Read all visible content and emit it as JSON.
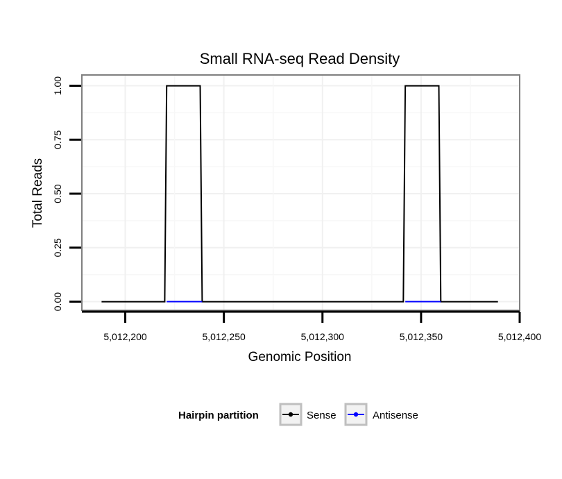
{
  "chart_data": {
    "type": "line",
    "title": "Small RNA-seq Read Density",
    "xlabel": "Genomic Position",
    "ylabel": "Total Reads",
    "xlim": [
      5012178,
      5012400
    ],
    "ylim": [
      -0.04,
      1.05
    ],
    "x_ticks": [
      5012200,
      5012250,
      5012300,
      5012350,
      5012400
    ],
    "x_tick_labels": [
      "5,012,200",
      "5,012,250",
      "5,012,300",
      "5,012,350",
      "5,012,400"
    ],
    "y_ticks": [
      0,
      0.25,
      0.5,
      0.75,
      1.0
    ],
    "y_tick_labels": [
      "0.00",
      "0.25",
      "0.50",
      "0.75",
      "1.00"
    ],
    "grid": true,
    "legend": {
      "title": "Hairpin partition",
      "placement": "bottom",
      "entries": [
        "Sense",
        "Antisense"
      ]
    },
    "series": [
      {
        "name": "Sense",
        "color": "#000000",
        "x": [
          5012188,
          5012220,
          5012221,
          5012238,
          5012239,
          5012341,
          5012342,
          5012359,
          5012360,
          5012389
        ],
        "y": [
          0,
          0,
          1,
          1,
          0,
          0,
          1,
          1,
          0,
          0
        ]
      },
      {
        "name": "Antisense",
        "color": "#0000ff",
        "x": [
          5012221,
          5012239,
          5012342,
          5012360
        ],
        "y": [
          0,
          0,
          0,
          0
        ],
        "segments": [
          [
            0,
            1
          ],
          [
            2,
            3
          ]
        ]
      }
    ]
  }
}
